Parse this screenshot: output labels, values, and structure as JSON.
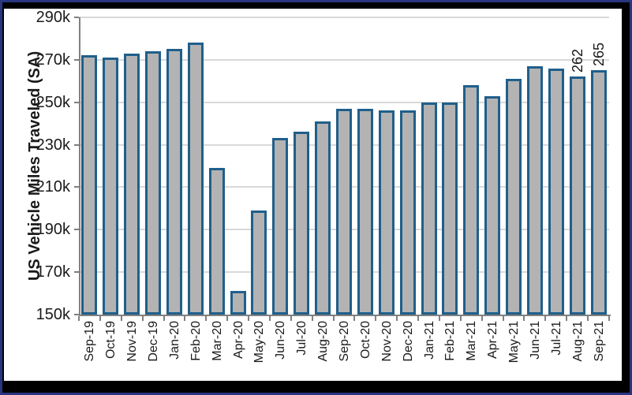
{
  "colors": {
    "frame_blue": "#2a3580",
    "mat_black": "#000000",
    "panel_white": "#ffffff",
    "bar_fill": "#b3b3b3",
    "bar_border": "#1f5f8b",
    "gridline": "#d9d9d9",
    "axis": "#808080",
    "text": "#1a1a1a"
  },
  "chart_data": {
    "type": "bar",
    "title": "",
    "xlabel": "",
    "ylabel": "US Vehicle Miles Traveled (SA)",
    "ylim": [
      150,
      290
    ],
    "grid": true,
    "legend": false,
    "yticks": {
      "values": [
        150,
        170,
        190,
        210,
        230,
        250,
        270,
        290
      ],
      "labels": [
        "150k",
        "170k",
        "190k",
        "210k",
        "230k",
        "250k",
        "270k",
        "290k"
      ]
    },
    "categories": [
      "Sep-19",
      "Oct-19",
      "Nov-19",
      "Dec-19",
      "Jan-20",
      "Feb-20",
      "Mar-20",
      "Apr-20",
      "May-20",
      "Jun-20",
      "Jul-20",
      "Aug-20",
      "Sep-20",
      "Oct-20",
      "Nov-20",
      "Dec-20",
      "Jan-21",
      "Feb-21",
      "Mar-21",
      "Apr-21",
      "May-21",
      "Jun-21",
      "Jul-21",
      "Aug-21",
      "Sep-21"
    ],
    "values": [
      272,
      271,
      273,
      274,
      275,
      278,
      219,
      161,
      199,
      233,
      236,
      241,
      247,
      247,
      246,
      246,
      250,
      250,
      258,
      253,
      261,
      267,
      266,
      262,
      265
    ],
    "annotations": [
      {
        "category": "Aug-21",
        "text": "262"
      },
      {
        "category": "Sep-21",
        "text": "265"
      }
    ]
  }
}
